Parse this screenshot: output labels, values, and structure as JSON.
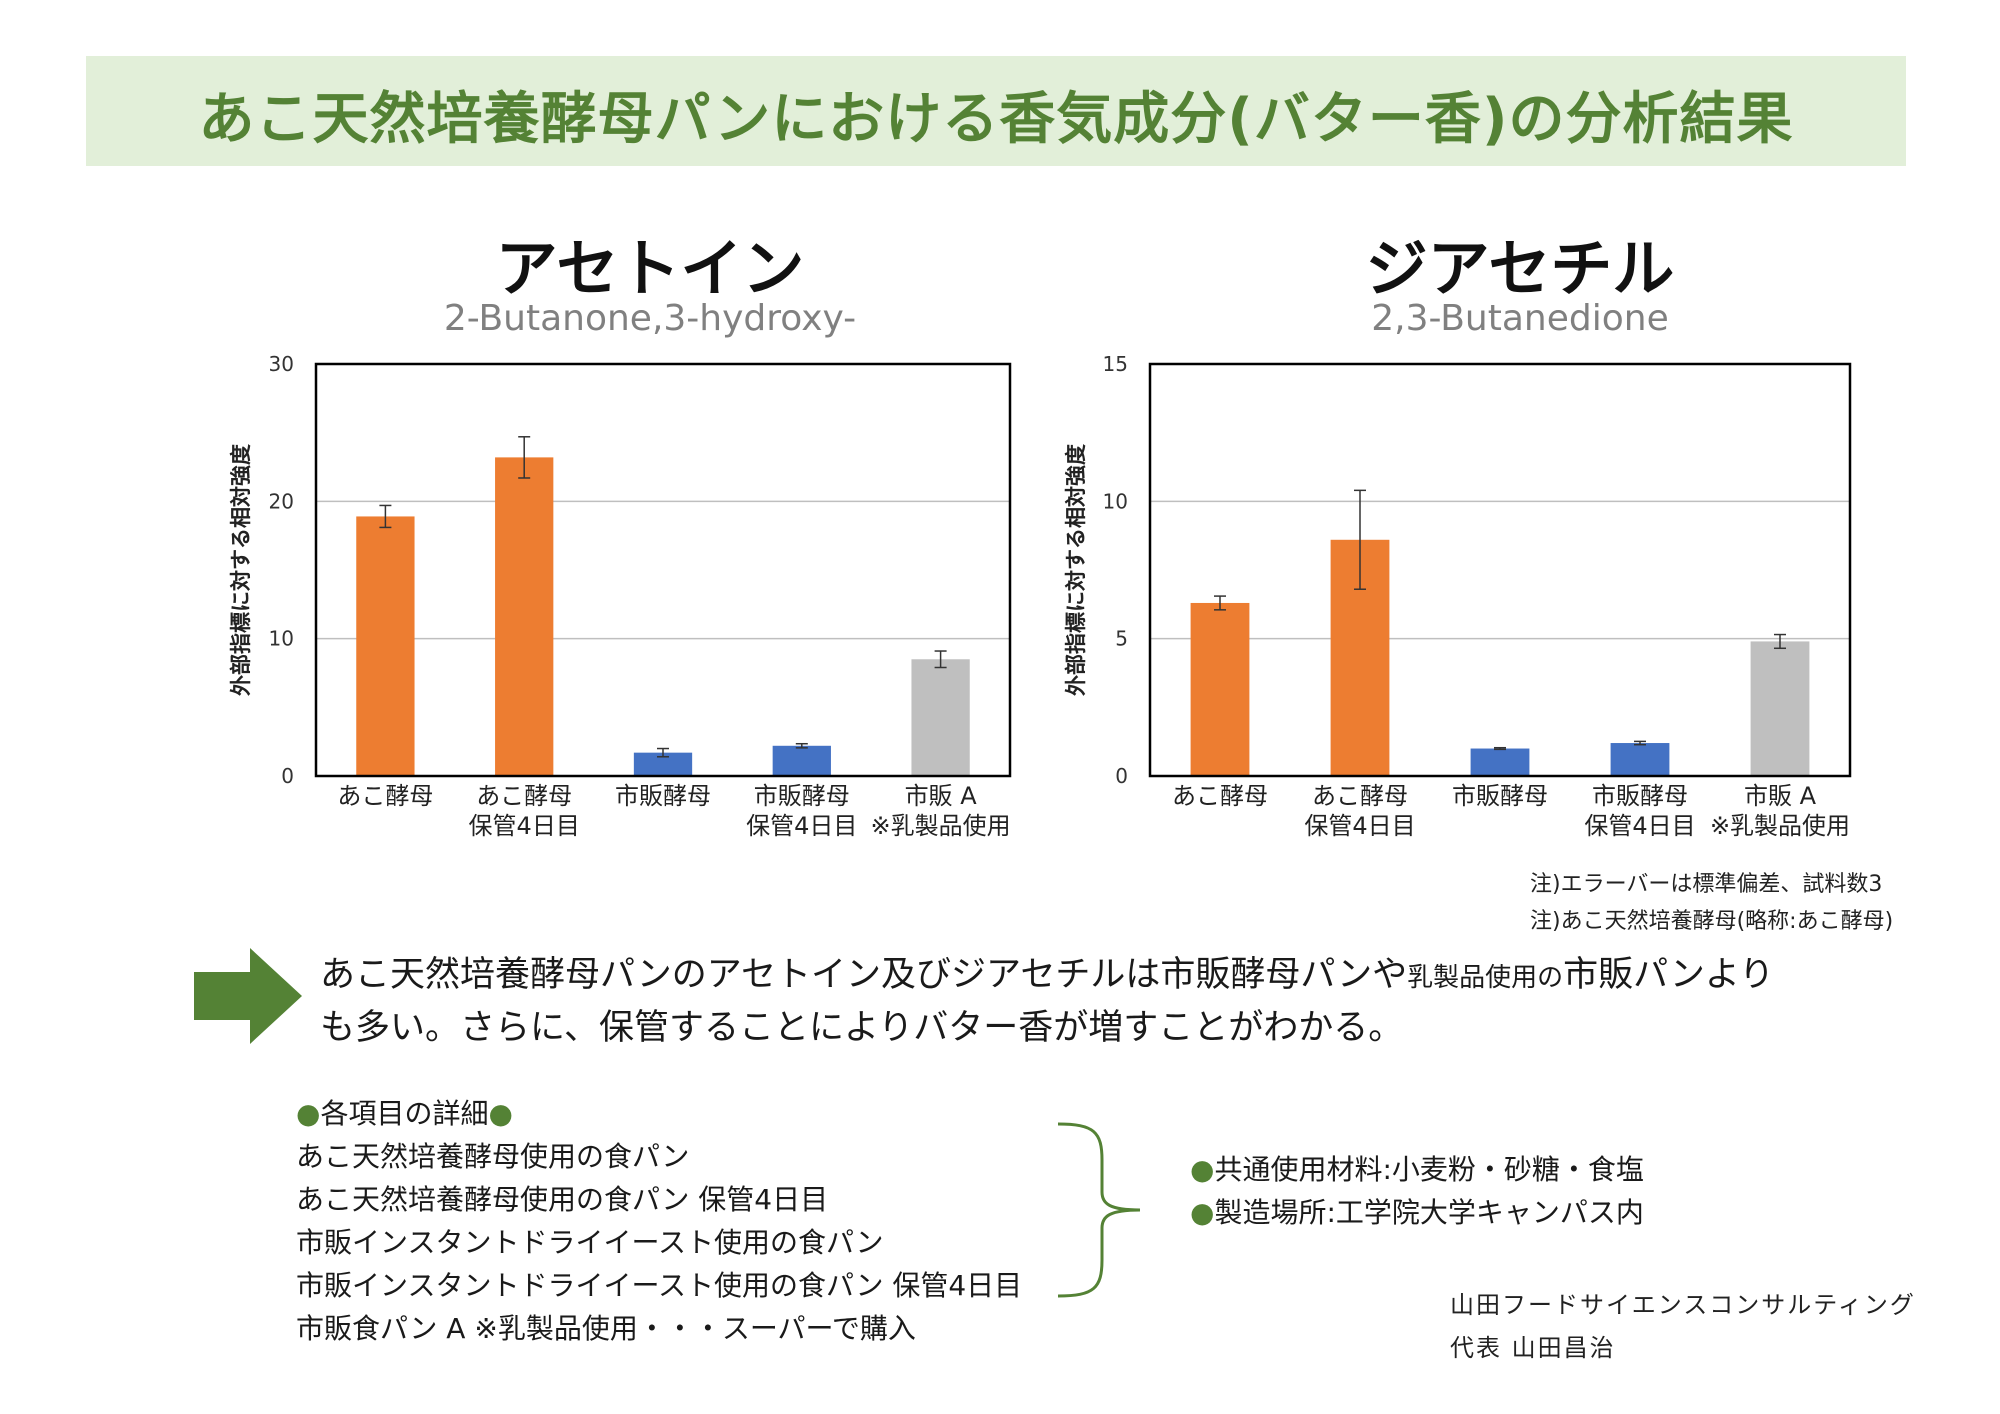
{
  "page_title": "あこ天然培養酵母パンにおける香気成分(バター香)の分析結果",
  "colors": {
    "ako": "#ed7d31",
    "commercial": "#4472c4",
    "dairy": "#bfbfbf",
    "accent": "#548235",
    "banner": "#e2efd9"
  },
  "chart_data": [
    {
      "type": "bar",
      "title": "アセトイン",
      "subtitle": "2-Butanone,3-hydroxy-",
      "ylabel": "外部指標に対する相対強度",
      "ylim": [
        0,
        30
      ],
      "yticks": [
        "0",
        "10",
        "20",
        "30"
      ],
      "grid": true,
      "categories": [
        [
          "あこ酵母"
        ],
        [
          "あこ酵母",
          "保管4日目"
        ],
        [
          "市販酵母"
        ],
        [
          "市販酵母",
          "保管4日目"
        ],
        [
          "市販 A",
          "※乳製品使用"
        ]
      ],
      "values": [
        18.9,
        23.2,
        1.7,
        2.2,
        8.5
      ],
      "errors": [
        0.8,
        1.5,
        0.3,
        0.15,
        0.6
      ],
      "bar_colors": [
        "#ed7d31",
        "#ed7d31",
        "#4472c4",
        "#4472c4",
        "#bfbfbf"
      ]
    },
    {
      "type": "bar",
      "title": "ジアセチル",
      "subtitle": "2,3-Butanedione",
      "ylabel": "外部指標に対する相対強度",
      "ylim": [
        0,
        15
      ],
      "yticks": [
        "0",
        "5",
        "10",
        "15"
      ],
      "grid": true,
      "categories": [
        [
          "あこ酵母"
        ],
        [
          "あこ酵母",
          "保管4日目"
        ],
        [
          "市販酵母"
        ],
        [
          "市販酵母",
          "保管4日目"
        ],
        [
          "市販 A",
          "※乳製品使用"
        ]
      ],
      "values": [
        6.3,
        8.6,
        1.0,
        1.2,
        4.9
      ],
      "errors": [
        0.25,
        1.8,
        0.03,
        0.06,
        0.25
      ],
      "bar_colors": [
        "#ed7d31",
        "#ed7d31",
        "#4472c4",
        "#4472c4",
        "#bfbfbf"
      ]
    }
  ],
  "notes": [
    "注)エラーバーは標準偏差、試料数3",
    "注)あこ天然培養酵母(略称:あこ酵母)"
  ],
  "conclusion": {
    "part1": "あこ天然培養酵母パンのアセトイン及びジアセチルは市販酵母パンや",
    "part2_small": "乳製品使用の",
    "part3": "市販パンより",
    "line2": "も多い。さらに、保管することによりバター香が増すことがわかる。"
  },
  "details": {
    "heading": "各項目の詳細",
    "items": [
      "あこ天然培養酵母使用の食パン",
      "あこ天然培養酵母使用の食パン 保管4日目",
      "市販インスタントドライイースト使用の食パン",
      "市販インスタントドライイースト使用の食パン 保管4日目",
      "市販食パン A ※乳製品使用・・・スーパーで購入"
    ]
  },
  "common": {
    "materials": "共通使用材料:小麦粉・砂糖・食塩",
    "location": "製造場所:工学院大学キャンパス内"
  },
  "footer": {
    "company": "山田フードサイエンスコンサルティング",
    "rep": "代表 山田昌治"
  }
}
